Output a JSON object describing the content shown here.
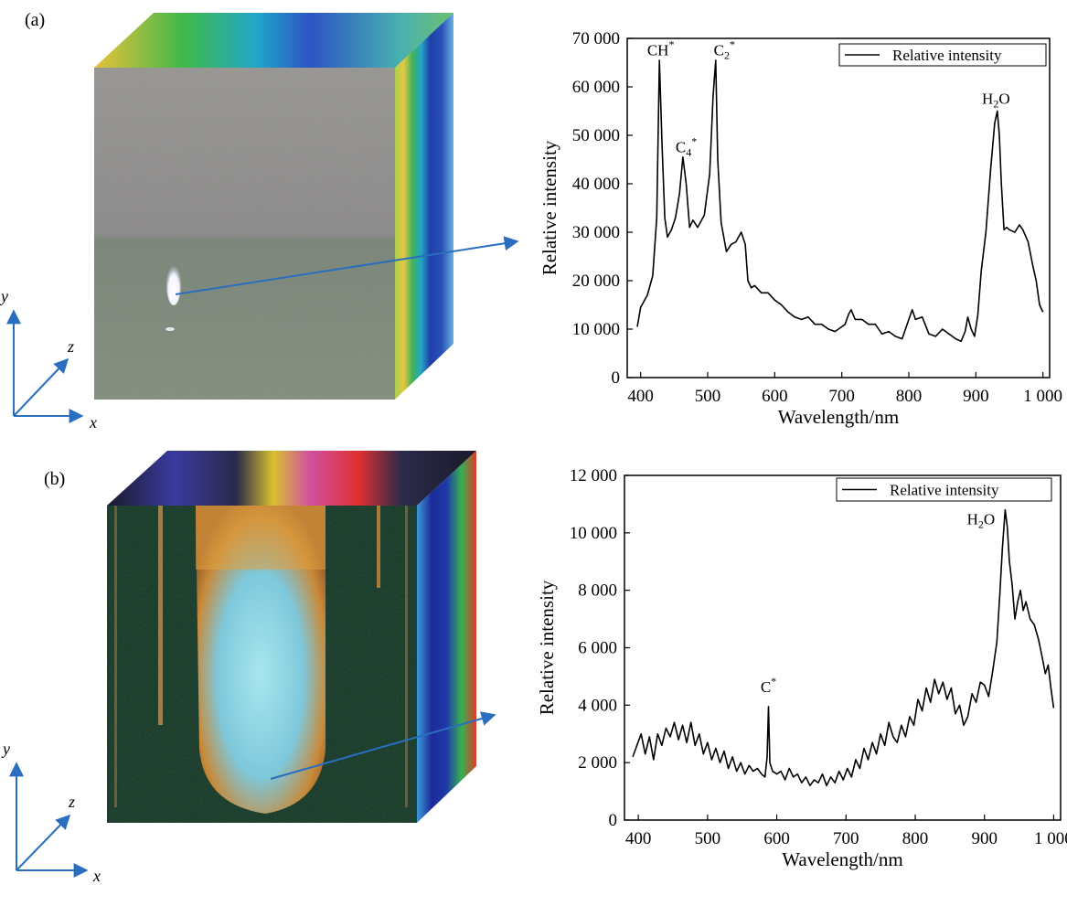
{
  "panels": [
    {
      "label": "(a)"
    },
    {
      "label": "(b)"
    }
  ],
  "axes_glyphs": {
    "x": "x",
    "y": "y",
    "z": "z"
  },
  "colors": {
    "arrow": "#2a6fbf",
    "line": "#000000",
    "axes_arrow": "#2a6fbf"
  },
  "chart_data": [
    {
      "type": "line",
      "panel": "(a)",
      "xlabel": "Wavelength/nm",
      "ylabel": "Relative intensity",
      "xlim": [
        380,
        1010
      ],
      "ylim": [
        0,
        70000
      ],
      "xticks": [
        400,
        500,
        600,
        700,
        800,
        900,
        1000
      ],
      "xtick_labels": [
        "400",
        "500",
        "600",
        "700",
        "800",
        "900",
        "1 000"
      ],
      "yticks": [
        0,
        10000,
        20000,
        30000,
        40000,
        50000,
        60000,
        70000
      ],
      "ytick_labels": [
        "0",
        "10 000",
        "20 000",
        "30 000",
        "40 000",
        "50 000",
        "60 000",
        "70 000"
      ],
      "legend": {
        "label": "Relative intensity",
        "position": "top-right"
      },
      "annotations": [
        {
          "base": "CH",
          "sub": "",
          "sup": "*",
          "x": 430,
          "y": 66500
        },
        {
          "base": "C",
          "sub": "4",
          "sup": "*",
          "x": 468,
          "y": 46500
        },
        {
          "base": "C",
          "sub": "2",
          "sup": "*",
          "x": 525,
          "y": 66500
        },
        {
          "base": "H",
          "sub": "2",
          "sup": "",
          "tail": "O",
          "x": 930,
          "y": 56500
        }
      ],
      "series": [
        {
          "x": [
            395,
            400,
            410,
            418,
            424,
            428,
            432,
            436,
            440,
            446,
            452,
            458,
            463,
            468,
            473,
            478,
            485,
            495,
            503,
            508,
            512,
            515,
            520,
            528,
            535,
            542,
            550,
            556,
            560,
            565,
            570,
            580,
            590,
            600,
            610,
            620,
            630,
            640,
            650,
            660,
            670,
            680,
            690,
            700,
            705,
            710,
            714,
            720,
            730,
            740,
            750,
            760,
            770,
            780,
            790,
            800,
            805,
            810,
            820,
            830,
            840,
            850,
            860,
            870,
            878,
            884,
            888,
            893,
            898,
            903,
            908,
            915,
            922,
            928,
            932,
            935,
            938,
            942,
            946,
            950,
            958,
            965,
            970,
            978,
            985,
            990,
            995,
            1000
          ],
          "y": [
            10500,
            14500,
            17000,
            21000,
            33000,
            65500,
            48000,
            33000,
            29000,
            30500,
            33000,
            38000,
            45500,
            40000,
            31000,
            32500,
            31000,
            33500,
            42000,
            58000,
            65500,
            45000,
            32000,
            26000,
            27500,
            28000,
            30000,
            27500,
            20000,
            18500,
            19000,
            17500,
            17500,
            16000,
            15000,
            13500,
            12500,
            12000,
            12500,
            11000,
            11000,
            10000,
            9500,
            10500,
            11000,
            13000,
            14000,
            12000,
            12000,
            11000,
            11000,
            9000,
            9500,
            8500,
            8000,
            12000,
            14000,
            12000,
            12500,
            9000,
            8500,
            10000,
            9000,
            8000,
            7500,
            9500,
            12500,
            10000,
            8500,
            13000,
            22000,
            30000,
            43000,
            52500,
            55000,
            50000,
            40000,
            30500,
            31000,
            30500,
            30000,
            31500,
            30500,
            28000,
            23000,
            20000,
            15000,
            13500
          ]
        }
      ]
    },
    {
      "type": "line",
      "panel": "(b)",
      "xlabel": "Wavelength/nm",
      "ylabel": "Relative intensity",
      "xlim": [
        380,
        1010
      ],
      "ylim": [
        0,
        12000
      ],
      "xticks": [
        400,
        500,
        600,
        700,
        800,
        900,
        1000
      ],
      "xtick_labels": [
        "400",
        "500",
        "600",
        "700",
        "800",
        "900",
        "1 000"
      ],
      "yticks": [
        0,
        2000,
        4000,
        6000,
        8000,
        10000,
        12000
      ],
      "ytick_labels": [
        "0",
        "2 000",
        "4 000",
        "6 000",
        "8 000",
        "10 000",
        "12 000"
      ],
      "legend": {
        "label": "Relative intensity",
        "position": "top-right"
      },
      "annotations": [
        {
          "base": "C",
          "sub": "",
          "sup": "*",
          "x": 588,
          "y": 4450
        },
        {
          "base": "H",
          "sub": "2",
          "sup": "",
          "tail": "O",
          "x": 895,
          "y": 10300
        }
      ],
      "series": [
        {
          "x": [
            392,
            398,
            404,
            410,
            416,
            422,
            428,
            434,
            440,
            446,
            452,
            458,
            464,
            470,
            476,
            482,
            488,
            494,
            500,
            506,
            512,
            518,
            524,
            530,
            536,
            542,
            548,
            554,
            560,
            566,
            572,
            578,
            583,
            586,
            588,
            590,
            594,
            600,
            606,
            612,
            618,
            624,
            630,
            636,
            642,
            648,
            654,
            660,
            666,
            672,
            678,
            684,
            690,
            696,
            702,
            708,
            714,
            720,
            726,
            732,
            738,
            744,
            750,
            756,
            762,
            768,
            774,
            780,
            786,
            792,
            798,
            804,
            810,
            816,
            822,
            828,
            834,
            840,
            846,
            852,
            858,
            864,
            870,
            876,
            882,
            888,
            894,
            900,
            906,
            912,
            918,
            922,
            926,
            930,
            933,
            936,
            940,
            944,
            948,
            952,
            956,
            960,
            966,
            972,
            978,
            984,
            988,
            992,
            996,
            1000
          ],
          "y": [
            2200,
            2600,
            3000,
            2300,
            2900,
            2100,
            3000,
            2600,
            3200,
            2900,
            3400,
            2800,
            3300,
            2700,
            3400,
            2600,
            3000,
            2300,
            2700,
            2100,
            2500,
            2000,
            2400,
            1800,
            2200,
            1700,
            2000,
            1600,
            1900,
            1700,
            1800,
            1600,
            1500,
            2200,
            3950,
            2000,
            1700,
            1600,
            1700,
            1400,
            1800,
            1500,
            1600,
            1300,
            1500,
            1200,
            1400,
            1300,
            1600,
            1200,
            1500,
            1300,
            1700,
            1400,
            1800,
            1500,
            2100,
            1800,
            2500,
            2100,
            2700,
            2300,
            3000,
            2600,
            3400,
            2900,
            2700,
            3300,
            2900,
            3600,
            3300,
            4200,
            3800,
            4600,
            4100,
            4900,
            4400,
            4800,
            4200,
            4600,
            3700,
            4000,
            3300,
            3600,
            4400,
            4100,
            4800,
            4700,
            4300,
            5200,
            6200,
            7800,
            9500,
            10800,
            10200,
            9000,
            8200,
            7000,
            7600,
            8000,
            7300,
            7600,
            7000,
            6800,
            6300,
            5600,
            5100,
            5400,
            4600,
            3900
          ]
        }
      ]
    }
  ]
}
